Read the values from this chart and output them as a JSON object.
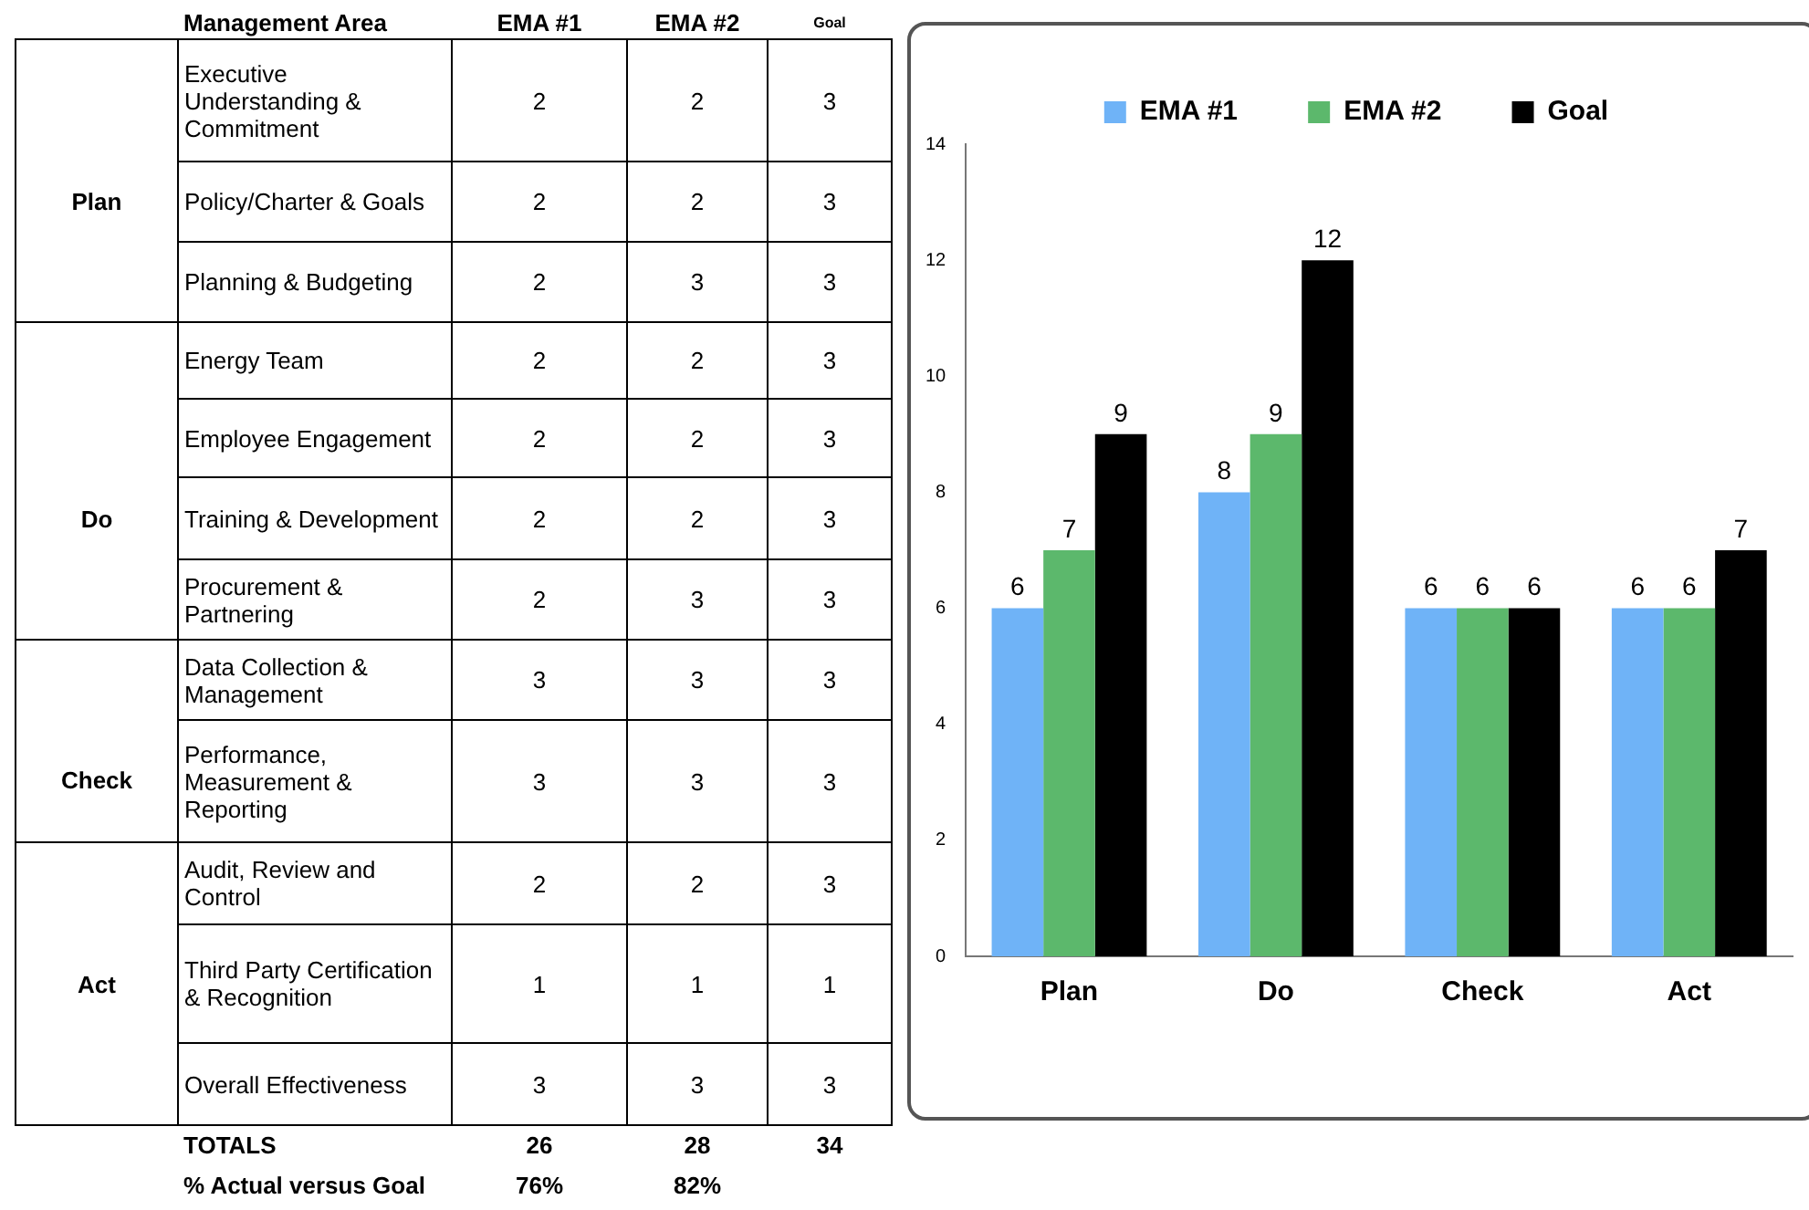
{
  "chart_data": [
    {
      "type": "heatmap",
      "ylabel": "Management Area",
      "categories": [
        "EMA #1",
        "EMA #2",
        "Goal"
      ],
      "y_categories": [
        "Executive Understanding & Commitment",
        "Policy/Charter & Goals",
        "Planning & Budgeting",
        "Energy Team",
        "Employee Engagement",
        "Training & Development",
        "Procurement & Partnering",
        "Data Collection & Management",
        "Performance, Measurement & Reporting",
        "Audit, Review and Control",
        "Third Party Certification & Recognition",
        "Overall Effectiveness"
      ],
      "y2_categories": [
        null,
        "Plan",
        null,
        null,
        null,
        "Do",
        null,
        null,
        "Check",
        null,
        "Act",
        null
      ],
      "cells": [
        [
          2,
          2,
          3
        ],
        [
          2,
          2,
          3
        ],
        [
          2,
          3,
          3
        ],
        [
          2,
          2,
          3
        ],
        [
          2,
          2,
          3
        ],
        [
          2,
          2,
          3
        ],
        [
          2,
          3,
          3
        ],
        [
          3,
          3,
          3
        ],
        [
          3,
          3,
          3
        ],
        [
          2,
          2,
          3
        ],
        [
          1,
          1,
          1
        ],
        [
          3,
          3,
          3
        ]
      ],
      "data_labels": true,
      "annotations": [
        "TOTALS",
        "26",
        "28",
        "34",
        "% Actual versus Goal",
        "76%",
        "82%"
      ]
    },
    {
      "type": "bar",
      "categories": [
        "Plan",
        "Do",
        "Check",
        "Act"
      ],
      "series": [
        {
          "name": "EMA #1",
          "color": "#6fb3f7",
          "values": [
            6,
            8,
            6,
            6
          ]
        },
        {
          "name": "EMA #2",
          "color": "#5cb86c",
          "values": [
            7,
            9,
            6,
            6
          ]
        },
        {
          "name": "Goal",
          "color": "#000000",
          "values": [
            9,
            12,
            6,
            7
          ]
        }
      ],
      "ylim": [
        0,
        14
      ],
      "yticks": [
        0,
        2,
        4,
        6,
        8,
        10,
        12,
        14
      ],
      "grid": false,
      "legend": "top",
      "data_labels": true
    }
  ]
}
